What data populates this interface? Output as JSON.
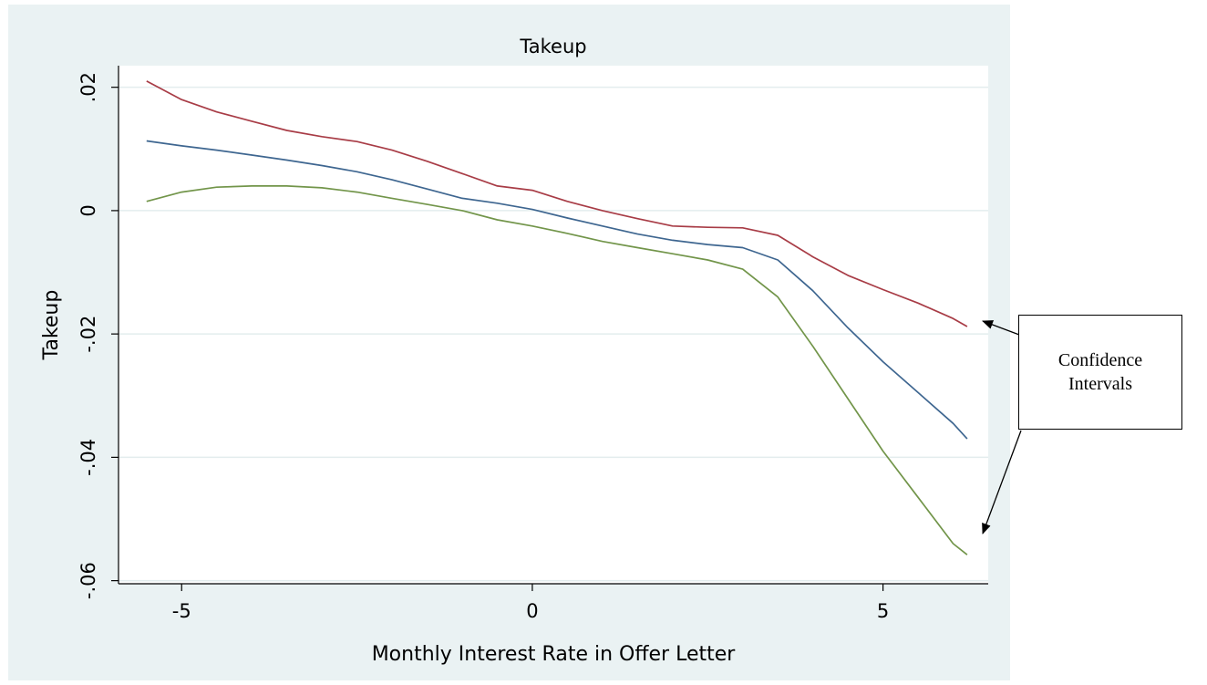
{
  "chart_data": {
    "type": "line",
    "title": "Takeup",
    "xlabel": "Monthly Interest Rate in Offer Letter",
    "ylabel": "Takeup",
    "xlim": [
      -5.9,
      6.5
    ],
    "ylim": [
      -0.0605,
      0.0235
    ],
    "xticks": [
      -5,
      0,
      5
    ],
    "xtick_labels": [
      "-5",
      "0",
      "5"
    ],
    "yticks": [
      0.02,
      0,
      -0.02,
      -0.04,
      -0.06
    ],
    "ytick_labels": [
      ".02",
      "0",
      "-.02",
      "-.04",
      "-.06"
    ],
    "grid": true,
    "legend": "none",
    "series": [
      {
        "color": "#a83c46",
        "x": [
          -5.5,
          -5.0,
          -4.5,
          -4.0,
          -3.5,
          -3.0,
          -2.5,
          -2.0,
          -1.5,
          -1.0,
          -0.5,
          0.0,
          0.5,
          1.0,
          1.5,
          2.0,
          2.5,
          3.0,
          3.5,
          4.0,
          4.5,
          5.0,
          5.5,
          6.0,
          6.2
        ],
        "y": [
          0.021,
          0.018,
          0.016,
          0.0145,
          0.013,
          0.012,
          0.0112,
          0.0098,
          0.008,
          0.006,
          0.004,
          0.0033,
          0.0015,
          0.0,
          -0.0013,
          -0.0025,
          -0.0027,
          -0.0028,
          -0.004,
          -0.0075,
          -0.0105,
          -0.0128,
          -0.015,
          -0.0175,
          -0.0188
        ]
      },
      {
        "color": "#3e6690",
        "x": [
          -5.5,
          -5.0,
          -4.5,
          -4.0,
          -3.5,
          -3.0,
          -2.5,
          -2.0,
          -1.5,
          -1.0,
          -0.5,
          0.0,
          0.5,
          1.0,
          1.5,
          2.0,
          2.5,
          3.0,
          3.5,
          4.0,
          4.5,
          5.0,
          5.5,
          6.0,
          6.2
        ],
        "y": [
          0.0113,
          0.0105,
          0.0098,
          0.009,
          0.0082,
          0.0073,
          0.0063,
          0.005,
          0.0035,
          0.002,
          0.0012,
          0.0002,
          -0.0012,
          -0.0025,
          -0.0038,
          -0.0048,
          -0.0055,
          -0.006,
          -0.008,
          -0.013,
          -0.019,
          -0.0245,
          -0.0295,
          -0.0345,
          -0.037
        ]
      },
      {
        "color": "#72954a",
        "x": [
          -5.5,
          -5.0,
          -4.5,
          -4.0,
          -3.5,
          -3.0,
          -2.5,
          -2.0,
          -1.5,
          -1.0,
          -0.5,
          0.0,
          0.5,
          1.0,
          1.5,
          2.0,
          2.5,
          3.0,
          3.5,
          4.0,
          4.5,
          5.0,
          5.5,
          6.0,
          6.2
        ],
        "y": [
          0.0015,
          0.003,
          0.0038,
          0.004,
          0.004,
          0.0037,
          0.003,
          0.002,
          0.001,
          0.0,
          -0.0015,
          -0.0025,
          -0.0037,
          -0.005,
          -0.006,
          -0.007,
          -0.008,
          -0.0095,
          -0.014,
          -0.022,
          -0.0305,
          -0.039,
          -0.0465,
          -0.054,
          -0.0558
        ]
      }
    ]
  },
  "annotation": {
    "line1": "Confidence",
    "line2": "Intervals"
  }
}
